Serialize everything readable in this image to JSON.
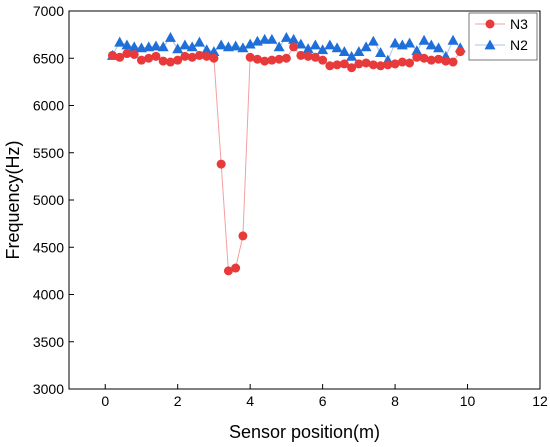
{
  "chart_data": {
    "type": "line",
    "xlabel": "Sensor position(m)",
    "ylabel": "Frequency(Hz)",
    "xlim": [
      -1,
      12
    ],
    "ylim": [
      3000,
      7000
    ],
    "xticks": [
      0,
      2,
      4,
      6,
      8,
      10,
      12
    ],
    "yticks": [
      3000,
      3500,
      4000,
      4500,
      5000,
      5500,
      6000,
      6500,
      7000
    ],
    "x_tick_labels": [
      "0",
      "2",
      "4",
      "6",
      "8",
      "10",
      "12"
    ],
    "y_tick_labels": [
      "3000",
      "3500",
      "4000",
      "4500",
      "5000",
      "5500",
      "6000",
      "6500",
      "7000"
    ],
    "grid": false,
    "legend_position": "top-right",
    "series": [
      {
        "name": "N3",
        "color": "#e8393b",
        "line_color": "#f2a0a0",
        "marker": "circle",
        "x": [
          0.2,
          0.4,
          0.6,
          0.8,
          1.0,
          1.2,
          1.4,
          1.6,
          1.8,
          2.0,
          2.2,
          2.4,
          2.6,
          2.8,
          3.0,
          3.2,
          3.4,
          3.6,
          3.8,
          4.0,
          4.2,
          4.4,
          4.6,
          4.8,
          5.0,
          5.2,
          5.4,
          5.6,
          5.8,
          6.0,
          6.2,
          6.4,
          6.6,
          6.8,
          7.0,
          7.2,
          7.4,
          7.6,
          7.8,
          8.0,
          8.2,
          8.4,
          8.6,
          8.8,
          9.0,
          9.2,
          9.4,
          9.6,
          9.8
        ],
        "y": [
          6530,
          6510,
          6550,
          6540,
          6480,
          6500,
          6520,
          6470,
          6460,
          6480,
          6520,
          6510,
          6530,
          6520,
          6500,
          5380,
          4250,
          4280,
          4620,
          6510,
          6490,
          6470,
          6480,
          6490,
          6500,
          6620,
          6530,
          6520,
          6510,
          6480,
          6420,
          6430,
          6440,
          6400,
          6440,
          6450,
          6430,
          6420,
          6430,
          6440,
          6460,
          6450,
          6510,
          6500,
          6480,
          6490,
          6470,
          6460,
          6570
        ]
      },
      {
        "name": "N2",
        "color": "#1e6fd9",
        "line_color": "#a9c4ea",
        "marker": "triangle",
        "x": [
          0.2,
          0.4,
          0.6,
          0.8,
          1.0,
          1.2,
          1.4,
          1.6,
          1.8,
          2.0,
          2.2,
          2.4,
          2.6,
          2.8,
          3.0,
          3.2,
          3.4,
          3.6,
          3.8,
          4.0,
          4.2,
          4.4,
          4.6,
          4.8,
          5.0,
          5.2,
          5.4,
          5.6,
          5.8,
          6.0,
          6.2,
          6.4,
          6.6,
          6.8,
          7.0,
          7.2,
          7.4,
          7.6,
          7.8,
          8.0,
          8.2,
          8.4,
          8.6,
          8.8,
          9.0,
          9.2,
          9.4,
          9.6,
          9.8
        ],
        "y": [
          6530,
          6670,
          6640,
          6620,
          6610,
          6620,
          6630,
          6620,
          6720,
          6600,
          6640,
          6620,
          6670,
          6590,
          6570,
          6640,
          6620,
          6630,
          6610,
          6650,
          6680,
          6700,
          6700,
          6620,
          6720,
          6700,
          6650,
          6600,
          6640,
          6590,
          6640,
          6610,
          6570,
          6520,
          6570,
          6620,
          6680,
          6560,
          6480,
          6660,
          6640,
          6660,
          6580,
          6690,
          6640,
          6610,
          6520,
          6690,
          6610
        ]
      }
    ]
  }
}
